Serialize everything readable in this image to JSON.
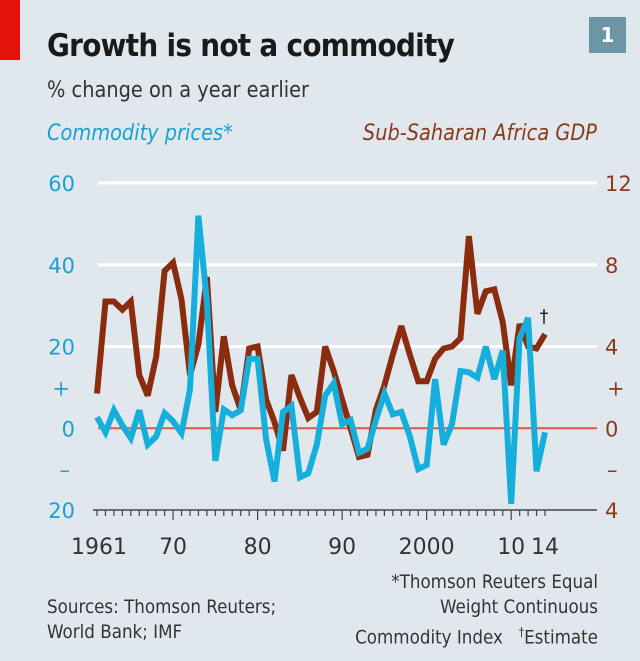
{
  "header": {
    "title": "Growth is not a commodity",
    "subtitle": "% change on a year earlier",
    "chart_number": "1"
  },
  "legend": {
    "left_series": "Commodity prices*",
    "right_series": "Sub-Saharan Africa GDP"
  },
  "footer": {
    "sources_line1": "Sources: Thomson Reuters;",
    "sources_line2": "World Bank; IMF",
    "note_line1": "*Thomson Reuters Equal",
    "note_line2": "Weight Continuous",
    "note_line3": "Commodity Index",
    "estimate_mark": "†",
    "estimate_label": "Estimate"
  },
  "colors": {
    "commodity": "#16aedb",
    "gdp": "#8b2c0e",
    "zero_line": "#e8533a",
    "grid": "#ffffff",
    "left_axis_text": "#1aa0d2",
    "right_axis_text": "#8b3a1e",
    "accent": "#e3120b",
    "badge": "#6c96a8"
  },
  "chart_data": {
    "type": "line",
    "title": "Growth is not a commodity",
    "subtitle": "% change on a year earlier",
    "xlabel": "",
    "x": [
      1961,
      1962,
      1963,
      1964,
      1965,
      1966,
      1967,
      1968,
      1969,
      1970,
      1971,
      1972,
      1973,
      1974,
      1975,
      1976,
      1977,
      1978,
      1979,
      1980,
      1981,
      1982,
      1983,
      1984,
      1985,
      1986,
      1987,
      1988,
      1989,
      1990,
      1991,
      1992,
      1993,
      1994,
      1995,
      1996,
      1997,
      1998,
      1999,
      2000,
      2001,
      2002,
      2003,
      2004,
      2005,
      2006,
      2007,
      2008,
      2009,
      2010,
      2011,
      2012,
      2013,
      2014
    ],
    "x_ticks": [
      {
        "value": 1961,
        "label": "1961"
      },
      {
        "value": 1970,
        "label": "70"
      },
      {
        "value": 1980,
        "label": "80"
      },
      {
        "value": 1990,
        "label": "90"
      },
      {
        "value": 2000,
        "label": "2000"
      },
      {
        "value": 2010,
        "label": "10"
      },
      {
        "value": 2014,
        "label": "14"
      }
    ],
    "xlim": [
      1961,
      2014
    ],
    "left_axis": {
      "label": "Commodity prices*",
      "ylim": [
        -20,
        60
      ],
      "ticks": [
        {
          "value": 60,
          "label": "60"
        },
        {
          "value": 40,
          "label": "40"
        },
        {
          "value": 20,
          "label": "20"
        },
        {
          "value": 10,
          "label": "+"
        },
        {
          "value": 0,
          "label": "0"
        },
        {
          "value": -10,
          "label": "–"
        },
        {
          "value": -20,
          "label": "20"
        }
      ]
    },
    "right_axis": {
      "label": "Sub-Saharan Africa GDP",
      "ylim": [
        -4,
        12
      ],
      "ticks": [
        {
          "value": 12,
          "label": "12"
        },
        {
          "value": 8,
          "label": "8"
        },
        {
          "value": 4,
          "label": "4"
        },
        {
          "value": 2,
          "label": "+"
        },
        {
          "value": 0,
          "label": "0"
        },
        {
          "value": -2,
          "label": "–"
        },
        {
          "value": -4,
          "label": "4"
        }
      ]
    },
    "grid": true,
    "series": [
      {
        "name": "Commodity prices*",
        "axis": "left",
        "values": [
          2.7,
          -1,
          4.4,
          0.7,
          -2.4,
          4.4,
          -4,
          -2,
          3.7,
          1.7,
          -1.2,
          9.5,
          52,
          31,
          -8,
          4.6,
          3.2,
          4.4,
          17,
          17,
          -2.7,
          -13,
          4,
          5.5,
          -12,
          -11,
          -4,
          8,
          11,
          1,
          2,
          -6,
          -5,
          2,
          8.5,
          3.4,
          4,
          -2,
          -10,
          -9,
          12,
          -4,
          1,
          14,
          13.7,
          12.4,
          20,
          12,
          19,
          -18.5,
          22,
          27,
          -10.5,
          -1
        ]
      },
      {
        "name": "Sub-Saharan Africa GDP",
        "axis": "right",
        "values": [
          1.7,
          6.2,
          6.2,
          5.8,
          6.2,
          2.6,
          1.6,
          3.5,
          7.7,
          8.1,
          6.3,
          2.6,
          4.1,
          7.4,
          0.8,
          4.5,
          2.1,
          0.9,
          3.9,
          4,
          1.4,
          0.3,
          -1.1,
          2.6,
          1.5,
          0.5,
          0.8,
          4,
          2.8,
          1.4,
          0,
          -1.4,
          -1.3,
          0.9,
          2.1,
          3.6,
          5,
          3.6,
          2.3,
          2.3,
          3.4,
          3.9,
          4,
          4.4,
          9.4,
          5.6,
          6.7,
          6.8,
          5.2,
          2.1,
          5.1,
          4,
          3.9,
          4.6
        ],
        "annotation": {
          "year": 2014,
          "text": "†"
        }
      }
    ],
    "legend": "top (left series top-left, right series top-right)"
  }
}
